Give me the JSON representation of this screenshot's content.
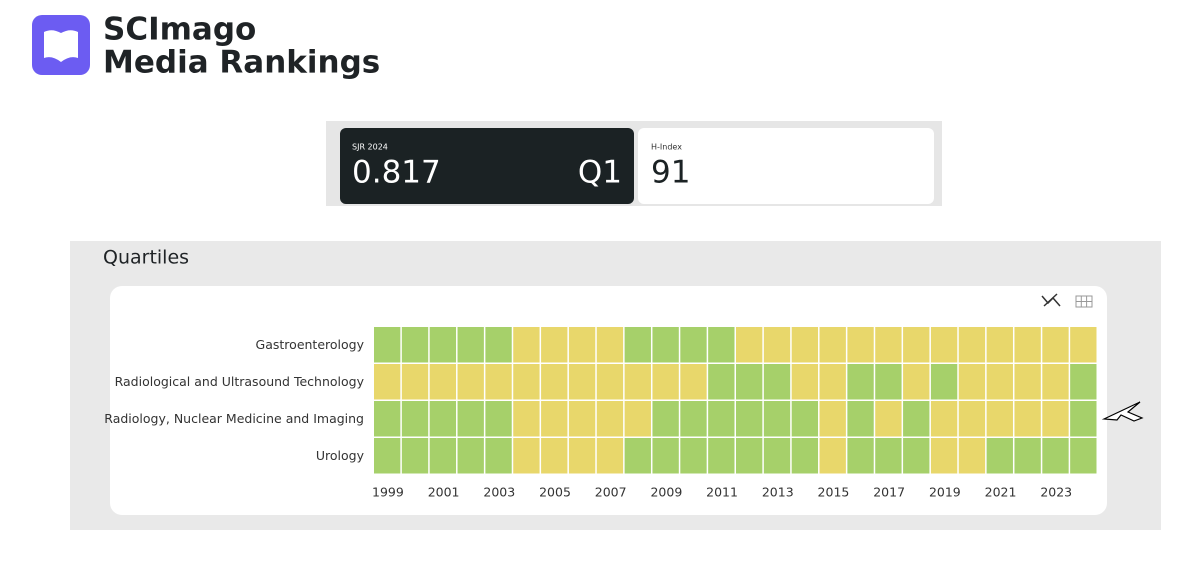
{
  "header": {
    "brand_line1": "SCImago",
    "brand_line2": "Media Rankings"
  },
  "metrics": {
    "sjr_label": "SJR 2024",
    "sjr_value": 0.817,
    "sjr_quartile": "Q1",
    "h_index_label": "H-Index",
    "h_index_value": 91
  },
  "section_title": "Quartiles",
  "chart_data": {
    "type": "heatmap",
    "categories": [
      1999,
      null,
      2001,
      null,
      2003,
      null,
      2005,
      null,
      2007,
      null,
      2009,
      null,
      2011,
      null,
      2013,
      null,
      2015,
      null,
      2017,
      null,
      2019,
      null,
      2021,
      null,
      2023,
      null
    ],
    "series": [
      {
        "name": "Gastroenterology",
        "values": [
          1,
          1,
          1,
          1,
          1,
          2,
          2,
          2,
          2,
          1,
          1,
          1,
          1,
          2,
          2,
          2,
          2,
          2,
          2,
          2,
          2,
          2,
          2,
          2,
          2,
          2
        ]
      },
      {
        "name": "Radiological and Ultrasound Technology",
        "values": [
          2,
          2,
          2,
          2,
          2,
          2,
          2,
          2,
          2,
          2,
          2,
          2,
          1,
          1,
          1,
          2,
          2,
          1,
          1,
          2,
          1,
          2,
          2,
          2,
          2,
          1
        ]
      },
      {
        "name": "Radiology, Nuclear Medicine and Imaging",
        "values": [
          1,
          1,
          1,
          1,
          1,
          2,
          2,
          2,
          2,
          2,
          1,
          1,
          1,
          1,
          1,
          1,
          2,
          1,
          2,
          1,
          2,
          2,
          2,
          2,
          2,
          1
        ]
      },
      {
        "name": "Urology",
        "values": [
          1,
          1,
          1,
          1,
          1,
          2,
          2,
          2,
          2,
          1,
          1,
          1,
          1,
          1,
          1,
          1,
          2,
          1,
          1,
          1,
          2,
          2,
          1,
          1,
          1,
          1
        ]
      }
    ],
    "value_colors": {
      "1": "#a6d06a",
      "2": "#e8d76b"
    }
  }
}
